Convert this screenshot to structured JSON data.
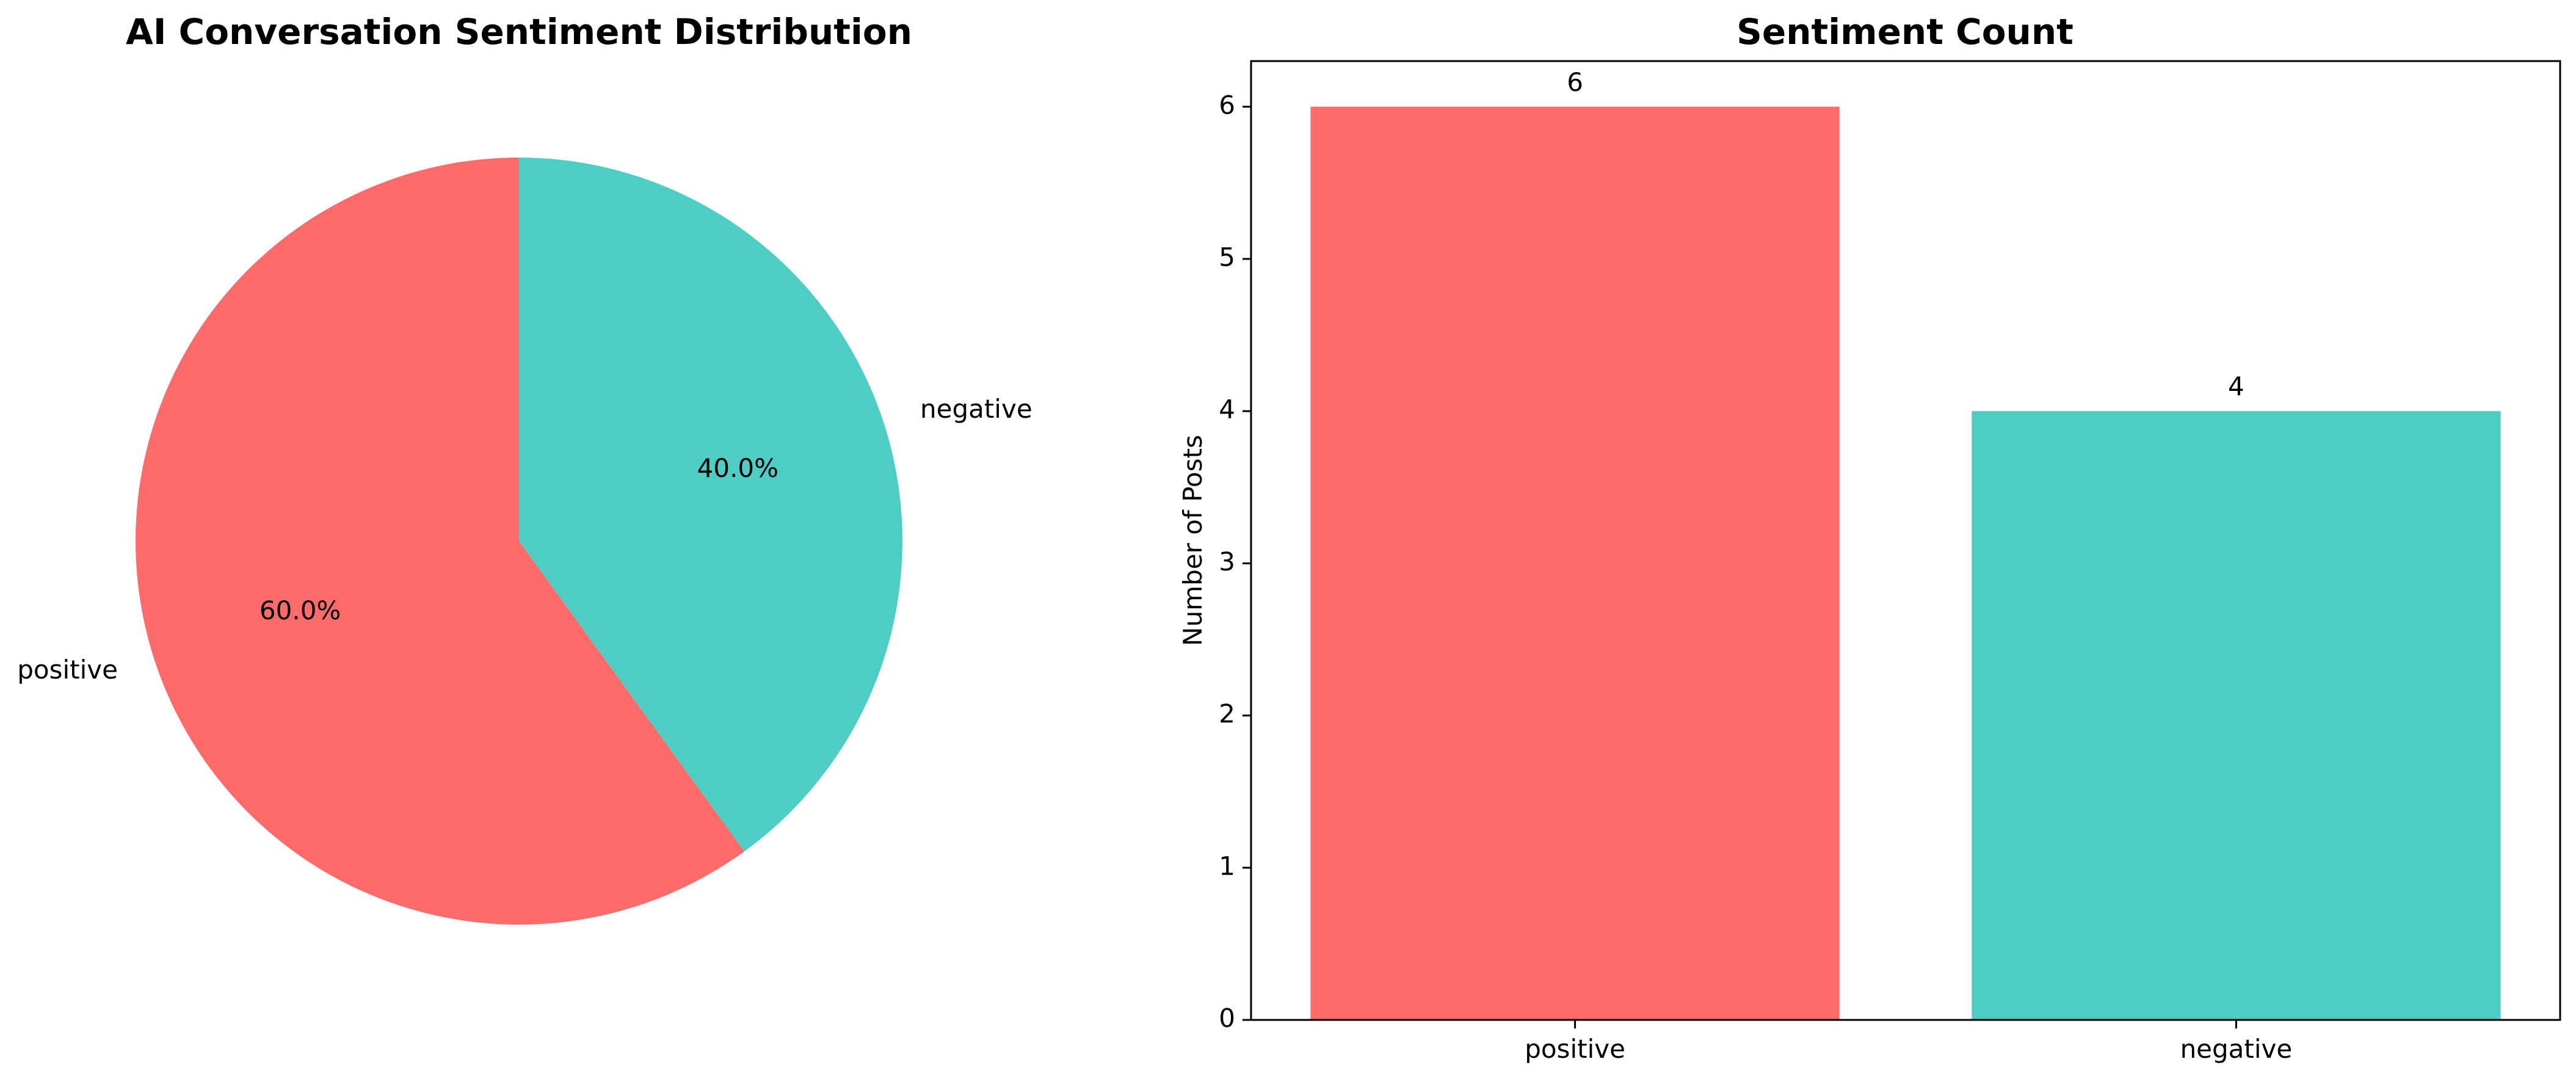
{
  "chart_data": [
    {
      "type": "pie",
      "title": "AI Conversation Sentiment Distribution",
      "categories": [
        "positive",
        "negative"
      ],
      "values": [
        6,
        4
      ],
      "percent_labels": [
        "60.0%",
        "40.0%"
      ],
      "colors": [
        "#FF6B6B",
        "#4ECDC4"
      ],
      "start_angle_deg": 90,
      "direction": "counterclockwise"
    },
    {
      "type": "bar",
      "title": "Sentiment Count",
      "categories": [
        "positive",
        "negative"
      ],
      "values": [
        6,
        4
      ],
      "value_labels": [
        "6",
        "4"
      ],
      "colors": [
        "#FF6B6B",
        "#4ECDC4"
      ],
      "xlabel": "",
      "ylabel": "Number of Posts",
      "ylim": [
        0,
        6.3
      ],
      "yticks": [
        0,
        1,
        2,
        3,
        4,
        5,
        6
      ],
      "grid": false
    }
  ]
}
